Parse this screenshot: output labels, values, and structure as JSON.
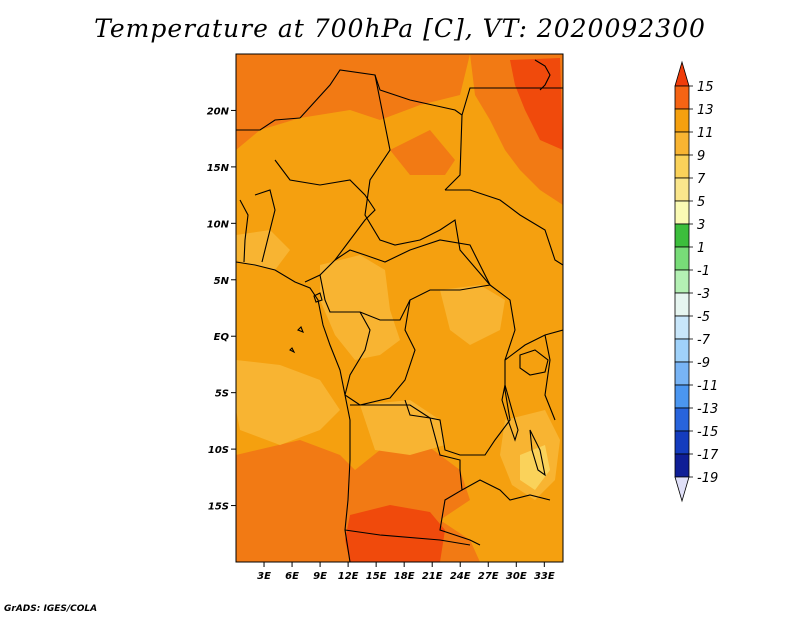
{
  "title": "Temperature at 700hPa [C], VT: 2020092300",
  "footer": "GrADS: IGES/COLA",
  "map": {
    "lon_range": [
      0,
      35
    ],
    "lat_range": [
      -20,
      25
    ],
    "lat_ticks": [
      {
        "value": 20,
        "label": "20N"
      },
      {
        "value": 15,
        "label": "15N"
      },
      {
        "value": 10,
        "label": "10N"
      },
      {
        "value": 5,
        "label": "5N"
      },
      {
        "value": 0,
        "label": "EQ"
      },
      {
        "value": -5,
        "label": "5S"
      },
      {
        "value": -10,
        "label": "10S"
      },
      {
        "value": -15,
        "label": "15S"
      }
    ],
    "lon_ticks": [
      {
        "value": 3,
        "label": "3E"
      },
      {
        "value": 6,
        "label": "6E"
      },
      {
        "value": 9,
        "label": "9E"
      },
      {
        "value": 12,
        "label": "12E"
      },
      {
        "value": 15,
        "label": "15E"
      },
      {
        "value": 18,
        "label": "18E"
      },
      {
        "value": 21,
        "label": "21E"
      },
      {
        "value": 24,
        "label": "24E"
      },
      {
        "value": 27,
        "label": "27E"
      },
      {
        "value": 30,
        "label": "30E"
      },
      {
        "value": 33,
        "label": "33E"
      }
    ],
    "dominant_color": "#f5a00f"
  },
  "colorbar": {
    "levels": [
      "15",
      "13",
      "11",
      "9",
      "7",
      "5",
      "3",
      "1",
      "-1",
      "-3",
      "-5",
      "-7",
      "-9",
      "-11",
      "-13",
      "-15",
      "-17",
      "-19"
    ],
    "colors": [
      "#f03c0a",
      "#f56414",
      "#f5a00f",
      "#f8b432",
      "#fad25a",
      "#fae68c",
      "#fafab4",
      "#3cbe3c",
      "#78dc78",
      "#b4f0b4",
      "#e6f5f0",
      "#c8e6fa",
      "#a0d2fa",
      "#78b4f5",
      "#4b96f0",
      "#2864dc",
      "#143cbe",
      "#0f1e96",
      "#000064",
      "#e0e0f8"
    ]
  }
}
